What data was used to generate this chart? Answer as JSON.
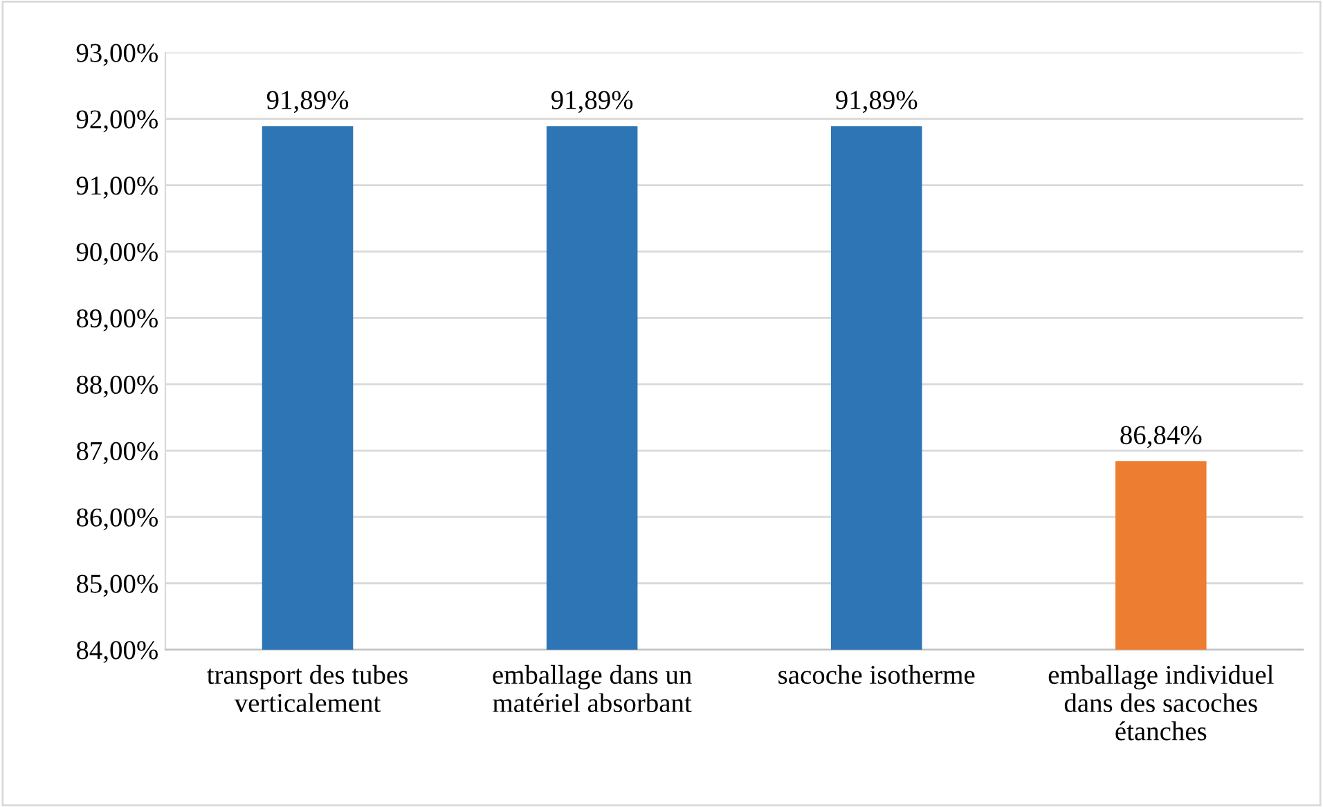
{
  "chart_data": {
    "type": "bar",
    "categories": [
      "transport des tubes\nverticalement",
      "emballage dans un\nmatériel absorbant",
      "sacoche isotherme",
      "emballage individuel\ndans des sacoches\nétanches"
    ],
    "values": [
      91.89,
      91.89,
      91.89,
      86.84
    ],
    "colors": [
      "#2e75b6",
      "#2e75b6",
      "#2e75b6",
      "#ed7d31"
    ],
    "value_labels": [
      "91,89%",
      "91,89%",
      "91,89%",
      "86,84%"
    ],
    "ylim": [
      84,
      93
    ],
    "yticks": [
      {
        "value": 84,
        "label": "84,00%"
      },
      {
        "value": 85,
        "label": "85,00%"
      },
      {
        "value": 86,
        "label": "86,00%"
      },
      {
        "value": 87,
        "label": "87,00%"
      },
      {
        "value": 88,
        "label": "88,00%"
      },
      {
        "value": 89,
        "label": "89,00%"
      },
      {
        "value": 90,
        "label": "90,00%"
      },
      {
        "value": 91,
        "label": "91,00%"
      },
      {
        "value": 92,
        "label": "92,00%"
      },
      {
        "value": 93,
        "label": "93,00%"
      }
    ],
    "grid": "y"
  }
}
